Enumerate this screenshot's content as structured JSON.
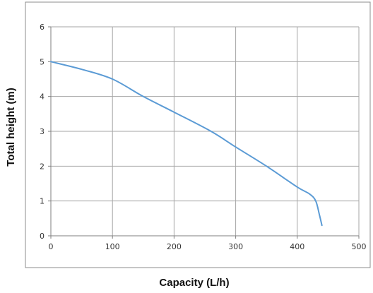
{
  "chart_data": {
    "type": "line",
    "title": "",
    "xlabel": "Capacity (L/h)",
    "ylabel": "Total height (m)",
    "xlim": [
      0,
      500
    ],
    "ylim": [
      0,
      6
    ],
    "x_ticks": [
      0,
      100,
      200,
      300,
      400,
      500
    ],
    "y_ticks": [
      0,
      1,
      2,
      3,
      4,
      5,
      6
    ],
    "grid": true,
    "legend": "none",
    "colors": {
      "line": "#5b9bd5",
      "grid": "#a6a6a6",
      "axis": "#7f7f7f",
      "frame": "#8c8c8c"
    },
    "series": [
      {
        "x": [
          0,
          50,
          100,
          150,
          200,
          260,
          300,
          350,
          400,
          420,
          430,
          436,
          440
        ],
        "y": [
          5.0,
          4.78,
          4.5,
          4.0,
          3.55,
          3.0,
          2.55,
          2.0,
          1.4,
          1.2,
          1.0,
          0.6,
          0.3
        ]
      }
    ]
  }
}
